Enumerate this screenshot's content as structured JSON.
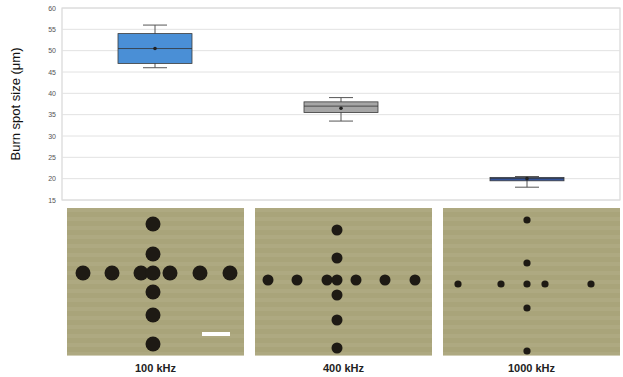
{
  "chart_data": {
    "type": "box",
    "y_label": "Burn spot size (μm)",
    "categories": [
      "100 kHz",
      "400 kHz",
      "1000 kHz"
    ],
    "boxes": [
      {
        "min": 46,
        "q1": 47,
        "median": 50.5,
        "q3": 54,
        "max": 56,
        "mean": 50.5
      },
      {
        "min": 33.5,
        "q1": 35.5,
        "median": 37,
        "q3": 38,
        "max": 39,
        "mean": 36.5
      },
      {
        "min": 18,
        "q1": 19.5,
        "median": 20,
        "q3": 20.3,
        "max": 20.5,
        "mean": 20
      }
    ],
    "colors": [
      "#4a8fd6",
      "#a6a6a6",
      "#3559a8"
    ],
    "ylim": [
      15,
      60
    ],
    "yticks": [
      15,
      20,
      25,
      30,
      35,
      40,
      45,
      50,
      55,
      60
    ],
    "grid": true
  }
}
